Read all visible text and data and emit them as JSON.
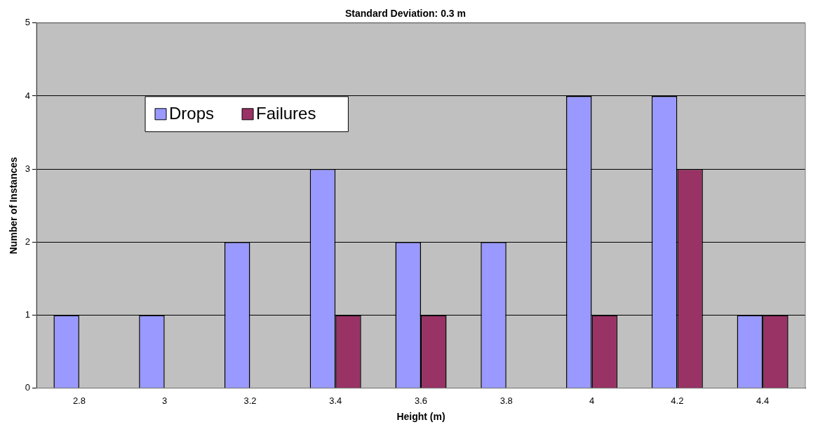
{
  "chart_data": {
    "type": "bar",
    "title": "Standard Deviation: 0.3 m",
    "xlabel": "Height (m)",
    "ylabel": "Number of Instances",
    "categories": [
      "2.8",
      "3",
      "3.2",
      "3.4",
      "3.6",
      "3.8",
      "4",
      "4.2",
      "4.4"
    ],
    "series": [
      {
        "name": "Drops",
        "color": "#9999ff",
        "values": [
          1,
          1,
          2,
          3,
          2,
          2,
          4,
          4,
          1
        ]
      },
      {
        "name": "Failures",
        "color": "#993366",
        "values": [
          0,
          0,
          0,
          1,
          1,
          0,
          1,
          3,
          1
        ]
      }
    ],
    "ylim": [
      0,
      5
    ],
    "yticks": [
      0,
      1,
      2,
      3,
      4,
      5
    ],
    "grid": "y",
    "legend": "top left"
  }
}
